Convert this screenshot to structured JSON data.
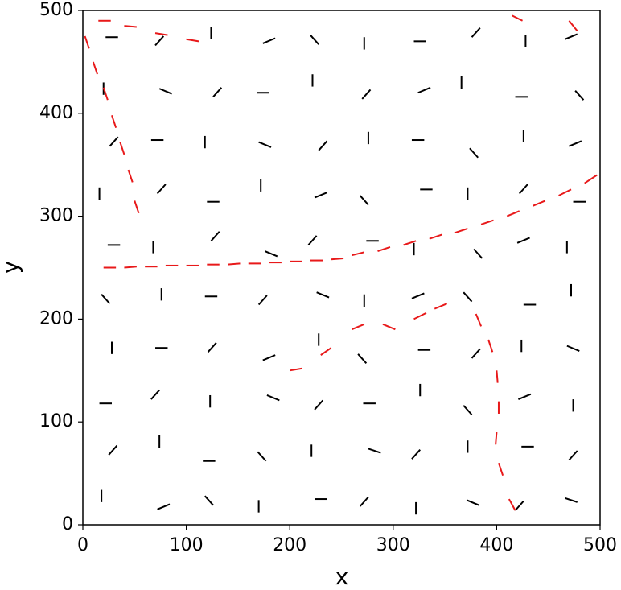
{
  "chart_data": {
    "type": "segments",
    "xlabel": "x",
    "ylabel": "y",
    "xlim": [
      0,
      500
    ],
    "ylim": [
      0,
      500
    ],
    "xticks": [
      0,
      100,
      200,
      300,
      400,
      500
    ],
    "yticks": [
      0,
      100,
      200,
      300,
      400,
      500
    ],
    "series": [
      {
        "color": "#000000",
        "segments": [
          [
            18,
            22,
            18,
            34
          ],
          [
            72,
            15,
            84,
            20
          ],
          [
            118,
            28,
            126,
            19
          ],
          [
            170,
            12,
            170,
            24
          ],
          [
            224,
            25,
            236,
            25
          ],
          [
            268,
            18,
            276,
            27
          ],
          [
            322,
            10,
            322,
            22
          ],
          [
            371,
            24,
            383,
            19
          ],
          [
            418,
            14,
            426,
            23
          ],
          [
            466,
            26,
            478,
            22
          ],
          [
            25,
            68,
            33,
            77
          ],
          [
            74,
            75,
            74,
            87
          ],
          [
            116,
            62,
            128,
            62
          ],
          [
            169,
            71,
            177,
            62
          ],
          [
            221,
            66,
            221,
            78
          ],
          [
            276,
            74,
            288,
            70
          ],
          [
            318,
            64,
            326,
            73
          ],
          [
            372,
            70,
            372,
            82
          ],
          [
            424,
            76,
            436,
            76
          ],
          [
            470,
            63,
            478,
            72
          ],
          [
            16,
            118,
            28,
            118
          ],
          [
            66,
            122,
            74,
            131
          ],
          [
            123,
            114,
            123,
            126
          ],
          [
            178,
            126,
            190,
            121
          ],
          [
            224,
            112,
            232,
            121
          ],
          [
            271,
            118,
            283,
            118
          ],
          [
            326,
            125,
            326,
            137
          ],
          [
            368,
            116,
            376,
            107
          ],
          [
            421,
            122,
            433,
            127
          ],
          [
            474,
            110,
            474,
            122
          ],
          [
            28,
            166,
            28,
            178
          ],
          [
            70,
            172,
            82,
            172
          ],
          [
            121,
            168,
            129,
            177
          ],
          [
            174,
            160,
            186,
            165
          ],
          [
            228,
            174,
            228,
            186
          ],
          [
            266,
            166,
            274,
            157
          ],
          [
            324,
            170,
            336,
            170
          ],
          [
            376,
            162,
            384,
            171
          ],
          [
            424,
            168,
            424,
            180
          ],
          [
            468,
            174,
            480,
            169
          ],
          [
            18,
            224,
            26,
            215
          ],
          [
            76,
            218,
            76,
            230
          ],
          [
            118,
            222,
            130,
            222
          ],
          [
            170,
            214,
            178,
            223
          ],
          [
            226,
            226,
            238,
            221
          ],
          [
            272,
            212,
            272,
            224
          ],
          [
            318,
            220,
            330,
            225
          ],
          [
            368,
            226,
            376,
            217
          ],
          [
            426,
            214,
            438,
            214
          ],
          [
            472,
            222,
            472,
            234
          ],
          [
            24,
            272,
            36,
            272
          ],
          [
            68,
            264,
            68,
            276
          ],
          [
            124,
            276,
            132,
            285
          ],
          [
            176,
            266,
            188,
            261
          ],
          [
            218,
            272,
            226,
            281
          ],
          [
            274,
            276,
            286,
            276
          ],
          [
            320,
            262,
            320,
            274
          ],
          [
            378,
            268,
            386,
            259
          ],
          [
            420,
            274,
            432,
            279
          ],
          [
            468,
            264,
            468,
            276
          ],
          [
            16,
            316,
            16,
            328
          ],
          [
            72,
            322,
            80,
            331
          ],
          [
            120,
            314,
            132,
            314
          ],
          [
            172,
            324,
            172,
            336
          ],
          [
            224,
            318,
            236,
            323
          ],
          [
            268,
            320,
            276,
            311
          ],
          [
            326,
            326,
            338,
            326
          ],
          [
            372,
            316,
            372,
            328
          ],
          [
            422,
            322,
            430,
            331
          ],
          [
            474,
            314,
            486,
            314
          ],
          [
            26,
            368,
            34,
            377
          ],
          [
            66,
            374,
            78,
            374
          ],
          [
            118,
            366,
            118,
            378
          ],
          [
            170,
            372,
            182,
            367
          ],
          [
            228,
            364,
            236,
            373
          ],
          [
            276,
            370,
            276,
            382
          ],
          [
            318,
            374,
            330,
            374
          ],
          [
            374,
            366,
            382,
            357
          ],
          [
            426,
            372,
            426,
            384
          ],
          [
            470,
            368,
            482,
            373
          ],
          [
            20,
            418,
            20,
            430
          ],
          [
            74,
            424,
            86,
            419
          ],
          [
            126,
            416,
            134,
            425
          ],
          [
            168,
            420,
            180,
            420
          ],
          [
            222,
            426,
            222,
            438
          ],
          [
            270,
            414,
            278,
            423
          ],
          [
            324,
            420,
            336,
            425
          ],
          [
            366,
            424,
            366,
            436
          ],
          [
            418,
            416,
            430,
            416
          ],
          [
            476,
            422,
            484,
            413
          ],
          [
            22,
            474,
            34,
            474
          ],
          [
            70,
            466,
            78,
            475
          ],
          [
            124,
            472,
            124,
            484
          ],
          [
            174,
            468,
            186,
            473
          ],
          [
            220,
            476,
            228,
            467
          ],
          [
            272,
            462,
            272,
            474
          ],
          [
            320,
            470,
            332,
            470
          ],
          [
            376,
            474,
            384,
            483
          ],
          [
            428,
            464,
            428,
            476
          ],
          [
            466,
            472,
            478,
            477
          ]
        ]
      },
      {
        "color": "#e8191a",
        "segments": [
          [
            20,
            250,
            32,
            250
          ],
          [
            40,
            250,
            52,
            251
          ],
          [
            60,
            251,
            72,
            251
          ],
          [
            80,
            252,
            92,
            252
          ],
          [
            100,
            252,
            112,
            252
          ],
          [
            120,
            253,
            132,
            253
          ],
          [
            140,
            253,
            152,
            254
          ],
          [
            160,
            254,
            172,
            254
          ],
          [
            180,
            255,
            192,
            255
          ],
          [
            200,
            256,
            212,
            256
          ],
          [
            220,
            257,
            232,
            257
          ],
          [
            240,
            258,
            252,
            259
          ],
          [
            260,
            262,
            272,
            265
          ],
          [
            285,
            266,
            297,
            270
          ],
          [
            310,
            272,
            322,
            276
          ],
          [
            335,
            278,
            347,
            282
          ],
          [
            360,
            284,
            372,
            288
          ],
          [
            385,
            292,
            397,
            296
          ],
          [
            410,
            300,
            422,
            305
          ],
          [
            435,
            310,
            447,
            315
          ],
          [
            460,
            320,
            472,
            326
          ],
          [
            485,
            332,
            497,
            340
          ],
          [
            380,
            205,
            385,
            193
          ],
          [
            392,
            180,
            396,
            168
          ],
          [
            400,
            150,
            401,
            138
          ],
          [
            402,
            120,
            402,
            108
          ],
          [
            400,
            90,
            399,
            78
          ],
          [
            402,
            60,
            406,
            48
          ],
          [
            412,
            25,
            418,
            14
          ],
          [
            200,
            150,
            212,
            152
          ],
          [
            230,
            165,
            240,
            172
          ],
          [
            260,
            190,
            272,
            195
          ],
          [
            290,
            195,
            302,
            190
          ],
          [
            320,
            200,
            332,
            206
          ],
          [
            340,
            210,
            352,
            215
          ],
          [
            2,
            475,
            6,
            463
          ],
          [
            10,
            450,
            14,
            438
          ],
          [
            20,
            425,
            24,
            413
          ],
          [
            28,
            398,
            32,
            386
          ],
          [
            36,
            372,
            40,
            360
          ],
          [
            44,
            345,
            48,
            333
          ],
          [
            50,
            315,
            54,
            303
          ],
          [
            15,
            490,
            27,
            490
          ],
          [
            40,
            485,
            52,
            484
          ],
          [
            70,
            478,
            82,
            476
          ],
          [
            100,
            472,
            112,
            470
          ],
          [
            415,
            495,
            425,
            490
          ],
          [
            470,
            490,
            478,
            480
          ]
        ]
      }
    ]
  }
}
